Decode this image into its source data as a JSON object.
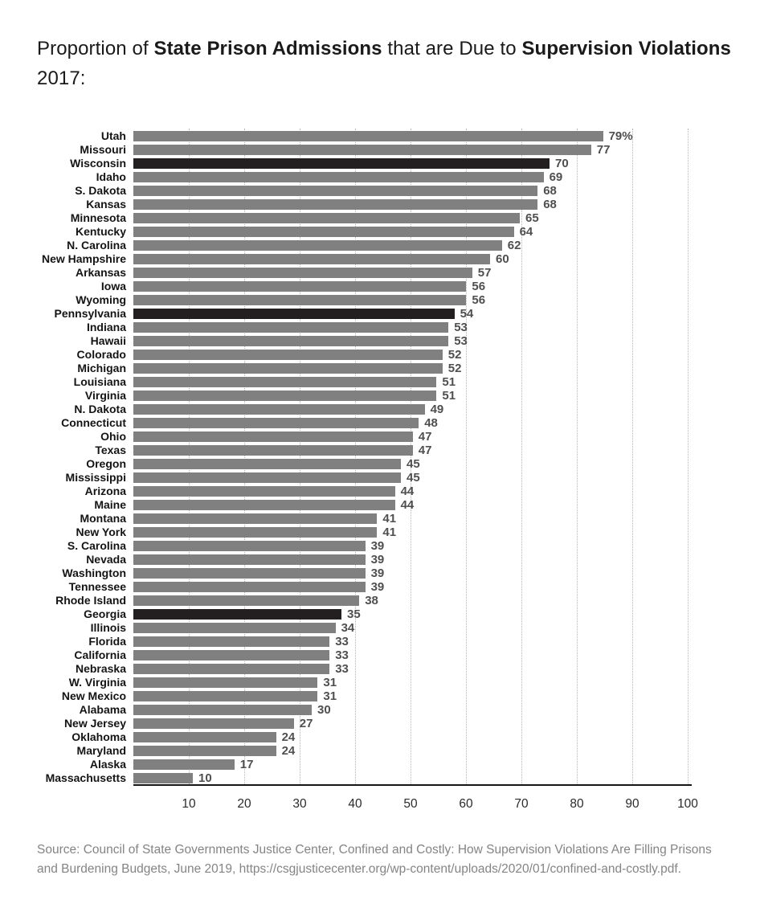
{
  "page": {
    "background": "#ffffff"
  },
  "title": {
    "segments": [
      {
        "text": "Proportion of ",
        "bold": false
      },
      {
        "text": "State Prison Admissions",
        "bold": true
      },
      {
        "text": " that are Due to ",
        "bold": false
      },
      {
        "text": "Supervision Violations",
        "bold": true
      },
      {
        "text": "2017:",
        "bold": false,
        "newline": true
      }
    ]
  },
  "chart_data": {
    "type": "bar",
    "orientation": "horizontal",
    "title": "Proportion of State Prison Admissions that are Due to Supervision Violations 2017:",
    "xlabel": "",
    "ylabel": "",
    "xlim": [
      0,
      100
    ],
    "x_ticks": [
      10,
      20,
      30,
      40,
      50,
      60,
      70,
      80,
      90,
      100
    ],
    "grid": "dotted-vertical",
    "legend": "none",
    "bar_color": "#808080",
    "highlight_color": "#231f20",
    "value_label_color": "#4f4f4f",
    "highlighted_states": [
      "Wisconsin",
      "Pennsylvania",
      "Georgia"
    ],
    "rows": [
      {
        "state": "Utah",
        "value": 79,
        "label": "79%",
        "highlight": false
      },
      {
        "state": "Missouri",
        "value": 77,
        "label": "77",
        "highlight": false
      },
      {
        "state": "Wisconsin",
        "value": 70,
        "label": "70",
        "highlight": true
      },
      {
        "state": "Idaho",
        "value": 69,
        "label": "69",
        "highlight": false
      },
      {
        "state": "S. Dakota",
        "value": 68,
        "label": "68",
        "highlight": false
      },
      {
        "state": "Kansas",
        "value": 68,
        "label": "68",
        "highlight": false
      },
      {
        "state": "Minnesota",
        "value": 65,
        "label": "65",
        "highlight": false
      },
      {
        "state": "Kentucky",
        "value": 64,
        "label": "64",
        "highlight": false
      },
      {
        "state": "N. Carolina",
        "value": 62,
        "label": "62",
        "highlight": false
      },
      {
        "state": "New Hampshire",
        "value": 60,
        "label": "60",
        "highlight": false
      },
      {
        "state": "Arkansas",
        "value": 57,
        "label": "57",
        "highlight": false
      },
      {
        "state": "Iowa",
        "value": 56,
        "label": "56",
        "highlight": false
      },
      {
        "state": "Wyoming",
        "value": 56,
        "label": "56",
        "highlight": false
      },
      {
        "state": "Pennsylvania",
        "value": 54,
        "label": "54",
        "highlight": true
      },
      {
        "state": "Indiana",
        "value": 53,
        "label": "53",
        "highlight": false
      },
      {
        "state": "Hawaii",
        "value": 53,
        "label": "53",
        "highlight": false
      },
      {
        "state": "Colorado",
        "value": 52,
        "label": "52",
        "highlight": false
      },
      {
        "state": "Michigan",
        "value": 52,
        "label": "52",
        "highlight": false
      },
      {
        "state": "Louisiana",
        "value": 51,
        "label": "51",
        "highlight": false
      },
      {
        "state": "Virginia",
        "value": 51,
        "label": "51",
        "highlight": false
      },
      {
        "state": "N. Dakota",
        "value": 49,
        "label": "49",
        "highlight": false
      },
      {
        "state": "Connecticut",
        "value": 48,
        "label": "48",
        "highlight": false
      },
      {
        "state": "Ohio",
        "value": 47,
        "label": "47",
        "highlight": false
      },
      {
        "state": "Texas",
        "value": 47,
        "label": "47",
        "highlight": false
      },
      {
        "state": "Oregon",
        "value": 45,
        "label": "45",
        "highlight": false
      },
      {
        "state": "Mississippi",
        "value": 45,
        "label": "45",
        "highlight": false
      },
      {
        "state": "Arizona",
        "value": 44,
        "label": "44",
        "highlight": false
      },
      {
        "state": "Maine",
        "value": 44,
        "label": "44",
        "highlight": false
      },
      {
        "state": "Montana",
        "value": 41,
        "label": "41",
        "highlight": false
      },
      {
        "state": "New York",
        "value": 41,
        "label": "41",
        "highlight": false
      },
      {
        "state": "S. Carolina",
        "value": 39,
        "label": "39",
        "highlight": false
      },
      {
        "state": "Nevada",
        "value": 39,
        "label": "39",
        "highlight": false
      },
      {
        "state": "Washington",
        "value": 39,
        "label": "39",
        "highlight": false
      },
      {
        "state": "Tennessee",
        "value": 39,
        "label": "39",
        "highlight": false
      },
      {
        "state": "Rhode Island",
        "value": 38,
        "label": "38",
        "highlight": false
      },
      {
        "state": "Georgia",
        "value": 35,
        "label": "35",
        "highlight": true
      },
      {
        "state": "Illinois",
        "value": 34,
        "label": "34",
        "highlight": false
      },
      {
        "state": "Florida",
        "value": 33,
        "label": "33",
        "highlight": false
      },
      {
        "state": "California",
        "value": 33,
        "label": "33",
        "highlight": false
      },
      {
        "state": "Nebraska",
        "value": 33,
        "label": "33",
        "highlight": false
      },
      {
        "state": "W. Virginia",
        "value": 31,
        "label": "31",
        "highlight": false
      },
      {
        "state": "New Mexico",
        "value": 31,
        "label": "31",
        "highlight": false
      },
      {
        "state": "Alabama",
        "value": 30,
        "label": "30",
        "highlight": false
      },
      {
        "state": "New Jersey",
        "value": 27,
        "label": "27",
        "highlight": false
      },
      {
        "state": "Oklahoma",
        "value": 24,
        "label": "24",
        "highlight": false
      },
      {
        "state": "Maryland",
        "value": 24,
        "label": "24",
        "highlight": false
      },
      {
        "state": "Alaska",
        "value": 17,
        "label": "17",
        "highlight": false
      },
      {
        "state": "Massachusetts",
        "value": 10,
        "label": "10",
        "highlight": false
      }
    ]
  },
  "source": {
    "line": "Source: Council of State Governments Justice Center, Confined and Costly: How Supervision Violations Are Filling Prisons and Burdening Budgets, June 2019, https://csgjusticecenter.org/wp-content/uploads/2020/01/confined-and-costly.pdf."
  }
}
